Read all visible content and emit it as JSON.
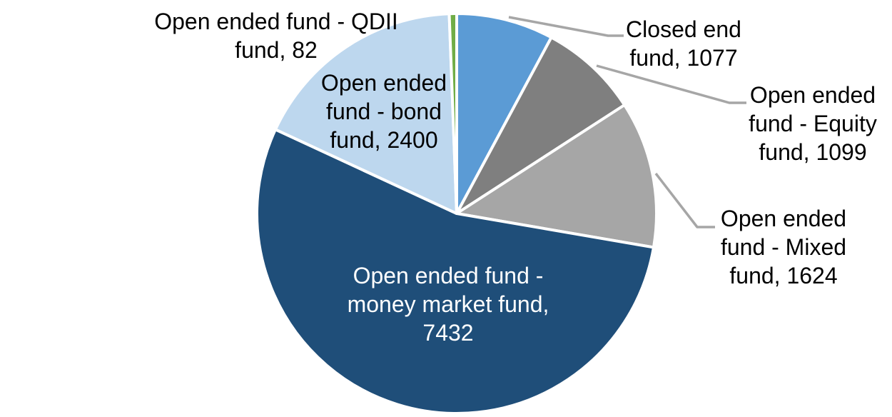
{
  "chart_data": {
    "type": "pie",
    "title": "",
    "legend": "none",
    "label_format": "name, value",
    "total": 13714,
    "start_angle_deg": 0,
    "direction": "clockwise",
    "slices": [
      {
        "key": "closed-end-fund",
        "name": "Closed end fund",
        "value": 1077,
        "color": "#5B9BD5",
        "label_lines": [
          "Closed end",
          "fund, 1077"
        ],
        "label_color": "#000000",
        "label_position": "outside-right"
      },
      {
        "key": "open-ended-equity-fund",
        "name": "Open ended fund - Equity fund",
        "value": 1099,
        "color": "#7F7F7F",
        "label_lines": [
          "Open ended",
          "fund - Equity",
          "fund, 1099"
        ],
        "label_color": "#000000",
        "label_position": "outside-right"
      },
      {
        "key": "open-ended-mixed-fund",
        "name": "Open ended fund - Mixed fund",
        "value": 1624,
        "color": "#A6A6A6",
        "label_lines": [
          "Open ended",
          "fund - Mixed",
          "fund, 1624"
        ],
        "label_color": "#000000",
        "label_position": "outside-right"
      },
      {
        "key": "open-ended-money-market-fund",
        "name": "Open ended fund - money market fund",
        "value": 7432,
        "color": "#1F4E79",
        "label_lines": [
          "Open ended fund -",
          "money market fund,",
          "7432"
        ],
        "label_color": "#FFFFFF",
        "label_position": "inside"
      },
      {
        "key": "open-ended-bond-fund",
        "name": "Open ended fund - bond fund",
        "value": 2400,
        "color": "#BDD7EE",
        "label_lines": [
          "Open ended",
          "fund - bond",
          "fund, 2400"
        ],
        "label_color": "#000000",
        "label_position": "inside"
      },
      {
        "key": "open-ended-qdii-fund",
        "name": "Open ended fund - QDII fund",
        "value": 82,
        "color": "#70AD47",
        "label_lines": [
          "Open ended fund - QDII",
          "fund, 82"
        ],
        "label_color": "#000000",
        "label_position": "outside-left"
      }
    ]
  },
  "styles": {
    "background": "#FFFFFF",
    "slice_border_color": "#FFFFFF",
    "leader_line_color": "#A6A6A6",
    "text_color": "#000000"
  }
}
